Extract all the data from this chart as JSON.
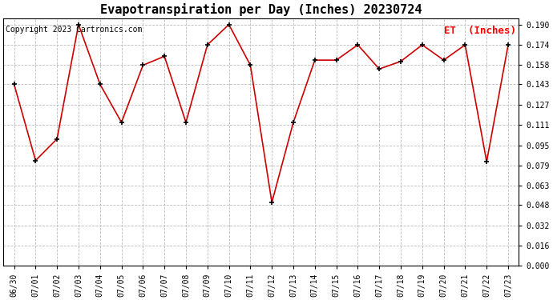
{
  "title": "Evapotranspiration per Day (Inches) 20230724",
  "legend_label": "ET  (Inches)",
  "copyright_text": "Copyright 2023 Cartronics.com",
  "dates": [
    "06/30",
    "07/01",
    "07/02",
    "07/03",
    "07/04",
    "07/05",
    "07/06",
    "07/07",
    "07/08",
    "07/09",
    "07/10",
    "07/11",
    "07/12",
    "07/13",
    "07/14",
    "07/15",
    "07/16",
    "07/17",
    "07/18",
    "07/19",
    "07/20",
    "07/21",
    "07/22",
    "07/23"
  ],
  "values": [
    0.143,
    0.083,
    0.1,
    0.19,
    0.143,
    0.113,
    0.158,
    0.165,
    0.113,
    0.174,
    0.19,
    0.158,
    0.05,
    0.113,
    0.162,
    0.162,
    0.174,
    0.155,
    0.161,
    0.174,
    0.162,
    0.174,
    0.082,
    0.174
  ],
  "line_color": "#cc0000",
  "marker_color": "#000000",
  "background_color": "#ffffff",
  "grid_color": "#bbbbbb",
  "ylim_min": 0.0,
  "ylim_max": 0.195,
  "yticks": [
    0.0,
    0.016,
    0.032,
    0.048,
    0.063,
    0.079,
    0.095,
    0.111,
    0.127,
    0.143,
    0.158,
    0.174,
    0.19
  ],
  "title_fontsize": 11,
  "legend_fontsize": 9,
  "tick_fontsize": 7,
  "copyright_fontsize": 7
}
